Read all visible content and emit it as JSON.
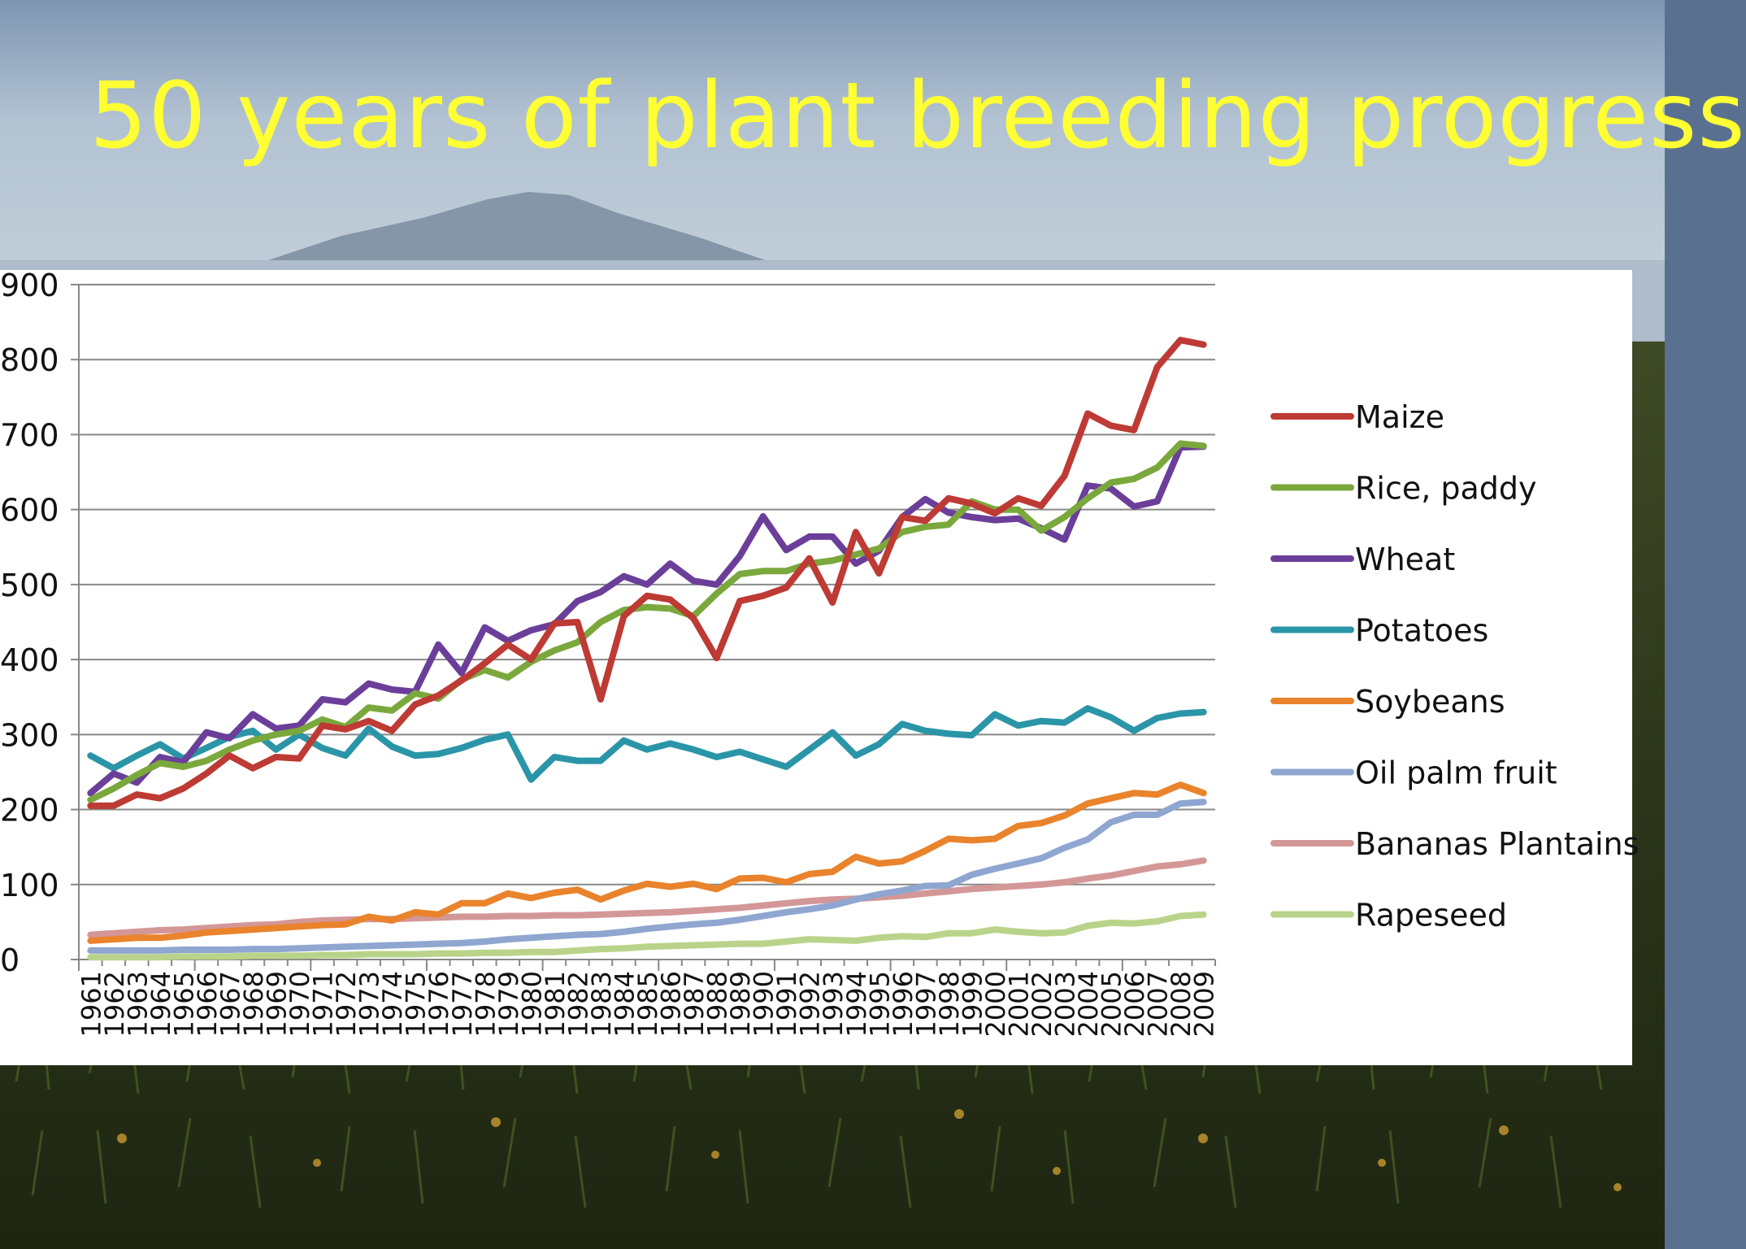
{
  "slide": {
    "title": "50 years of plant breeding progress"
  },
  "colors": {
    "title": "#ffff33",
    "panel": "#ffffff",
    "grid": "#888888"
  },
  "chart_data": {
    "type": "line",
    "title": "",
    "xlabel": "",
    "ylabel": "",
    "ylim": [
      0,
      900
    ],
    "yticks": [
      0,
      100,
      200,
      300,
      400,
      500,
      600,
      700,
      800,
      900
    ],
    "grid": true,
    "legend_position": "right",
    "x": [
      "1961",
      "1962",
      "1963",
      "1964",
      "1965",
      "1966",
      "1967",
      "1968",
      "1969",
      "1970",
      "1971",
      "1972",
      "1973",
      "1974",
      "1975",
      "1976",
      "1977",
      "1978",
      "1979",
      "1980",
      "1981",
      "1982",
      "1983",
      "1984",
      "1985",
      "1986",
      "1987",
      "1988",
      "1989",
      "1990",
      "1991",
      "1992",
      "1993",
      "1994",
      "1995",
      "1996",
      "1997",
      "1998",
      "1999",
      "2000",
      "2001",
      "2002",
      "2003",
      "2004",
      "2005",
      "2006",
      "2007",
      "2008",
      "2009"
    ],
    "series": [
      {
        "name": "Maize",
        "color": "#be3a34",
        "values": [
          205,
          205,
          220,
          215,
          228,
          248,
          272,
          255,
          270,
          268,
          312,
          307,
          318,
          305,
          340,
          352,
          372,
          395,
          420,
          400,
          448,
          450,
          347,
          458,
          485,
          480,
          455,
          402,
          478,
          485,
          496,
          535,
          476,
          570,
          515,
          590,
          585,
          615,
          608,
          595,
          615,
          605,
          645,
          728,
          712,
          706,
          790,
          826,
          820
        ]
      },
      {
        "name": "Rice, paddy",
        "color": "#7aa83c",
        "values": [
          213,
          228,
          246,
          262,
          257,
          265,
          280,
          292,
          300,
          305,
          320,
          310,
          336,
          332,
          355,
          348,
          373,
          386,
          376,
          397,
          412,
          423,
          450,
          466,
          470,
          468,
          458,
          488,
          514,
          518,
          518,
          528,
          532,
          540,
          548,
          570,
          577,
          580,
          611,
          600,
          600,
          572,
          590,
          615,
          636,
          641,
          656,
          688,
          685
        ]
      },
      {
        "name": "Wheat",
        "color": "#6b3f99",
        "values": [
          222,
          248,
          236,
          270,
          263,
          303,
          295,
          327,
          308,
          312,
          347,
          343,
          368,
          360,
          357,
          420,
          382,
          443,
          425,
          439,
          447,
          478,
          490,
          511,
          500,
          528,
          505,
          500,
          538,
          591,
          546,
          564,
          564,
          528,
          545,
          590,
          614,
          596,
          590,
          586,
          588,
          575,
          560,
          632,
          628,
          604,
          611,
          683,
          684
        ]
      },
      {
        "name": "Potatoes",
        "color": "#2b95a8",
        "values": [
          272,
          255,
          272,
          287,
          268,
          282,
          297,
          305,
          280,
          300,
          282,
          272,
          308,
          284,
          272,
          274,
          282,
          293,
          300,
          240,
          270,
          265,
          265,
          292,
          280,
          288,
          280,
          270,
          277,
          267,
          257,
          280,
          303,
          272,
          287,
          314,
          305,
          301,
          299,
          327,
          312,
          318,
          316,
          335,
          323,
          305,
          322,
          328,
          330
        ]
      },
      {
        "name": "Soybeans",
        "color": "#e9832c",
        "values": [
          25,
          27,
          29,
          29,
          32,
          36,
          38,
          40,
          42,
          44,
          46,
          47,
          57,
          52,
          63,
          60,
          75,
          75,
          88,
          82,
          89,
          93,
          80,
          92,
          101,
          97,
          101,
          94,
          108,
          109,
          103,
          114,
          117,
          137,
          128,
          131,
          145,
          161,
          159,
          161,
          178,
          182,
          192,
          208,
          215,
          222,
          220,
          233,
          222
        ]
      },
      {
        "name": "Oil palm fruit",
        "color": "#8fa6d0",
        "values": [
          12,
          12,
          12,
          12,
          13,
          13,
          13,
          14,
          14,
          15,
          16,
          17,
          18,
          19,
          20,
          21,
          22,
          24,
          27,
          29,
          31,
          33,
          34,
          37,
          41,
          44,
          47,
          49,
          53,
          58,
          63,
          67,
          72,
          80,
          87,
          92,
          98,
          99,
          113,
          121,
          128,
          135,
          149,
          160,
          183,
          193,
          193,
          208,
          210
        ]
      },
      {
        "name": "Bananas Plantains",
        "color": "#d49797",
        "values": [
          33,
          35,
          37,
          39,
          40,
          42,
          44,
          46,
          47,
          50,
          52,
          53,
          54,
          54,
          55,
          56,
          57,
          57,
          58,
          58,
          59,
          59,
          60,
          61,
          62,
          63,
          65,
          67,
          69,
          72,
          75,
          78,
          80,
          81,
          83,
          85,
          88,
          91,
          94,
          96,
          98,
          100,
          103,
          108,
          112,
          118,
          124,
          127,
          132
        ]
      },
      {
        "name": "Rapeseed",
        "color": "#b9d48a",
        "values": [
          3,
          3,
          3,
          3,
          4,
          4,
          4,
          5,
          5,
          5,
          6,
          6,
          7,
          7,
          7,
          8,
          8,
          9,
          9,
          10,
          10,
          12,
          14,
          15,
          17,
          18,
          19,
          20,
          21,
          21,
          24,
          27,
          26,
          25,
          29,
          31,
          30,
          35,
          35,
          40,
          37,
          35,
          36,
          45,
          49,
          48,
          51,
          58,
          60
        ]
      }
    ]
  }
}
